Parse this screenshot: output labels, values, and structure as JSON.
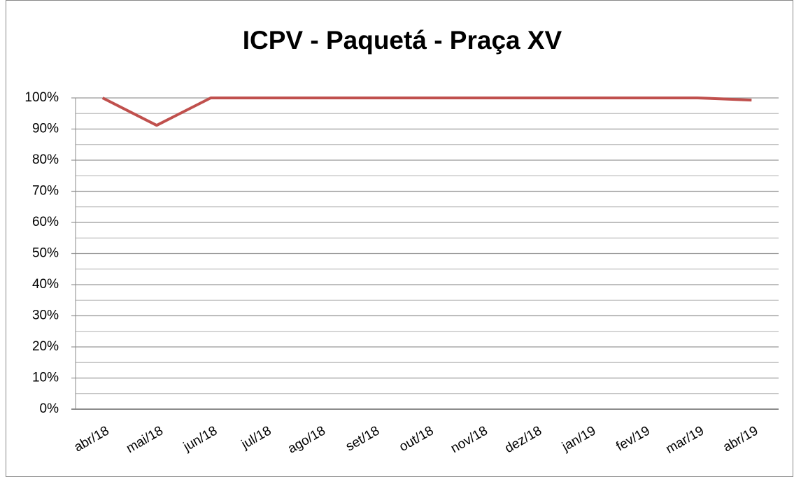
{
  "chart_data": {
    "type": "line",
    "title": "ICPV - Paquetá - Praça XV",
    "categories": [
      "abr/18",
      "mai/18",
      "jun/18",
      "jul/18",
      "ago/18",
      "set/18",
      "out/18",
      "nov/18",
      "dez/18",
      "jan/19",
      "fev/19",
      "mar/19",
      "abr/19"
    ],
    "series": [
      {
        "color": "#c0504d",
        "values": [
          100,
          91.2,
          100,
          100,
          100,
          100,
          100,
          100,
          100,
          100,
          100,
          100,
          99.3
        ]
      }
    ],
    "ylim": [
      0,
      100
    ],
    "yticks": [
      {
        "value": 0,
        "label": "0%"
      },
      {
        "value": 10,
        "label": "10%"
      },
      {
        "value": 20,
        "label": "20%"
      },
      {
        "value": 30,
        "label": "30%"
      },
      {
        "value": 40,
        "label": "40%"
      },
      {
        "value": 50,
        "label": "50%"
      },
      {
        "value": 60,
        "label": "60%"
      },
      {
        "value": 70,
        "label": "70%"
      },
      {
        "value": 80,
        "label": "80%"
      },
      {
        "value": 90,
        "label": "90%"
      },
      {
        "value": 100,
        "label": "100%"
      }
    ],
    "minor_yticks": [
      5,
      15,
      25,
      35,
      45,
      55,
      65,
      75,
      85,
      95
    ],
    "grid": true
  }
}
